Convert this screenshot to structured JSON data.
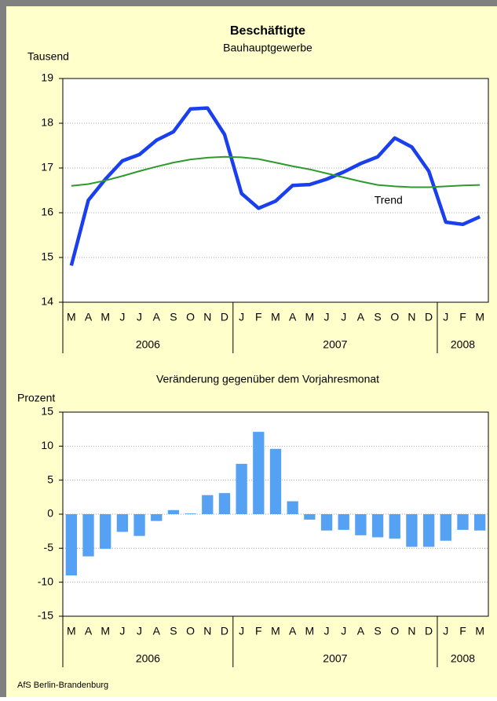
{
  "chart_data": [
    {
      "type": "line",
      "title": "Beschäftigte",
      "subtitle": "Bauhauptgewerbe",
      "y_label": "Tausend",
      "categories": [
        "M",
        "A",
        "M",
        "J",
        "J",
        "A",
        "S",
        "O",
        "N",
        "D",
        "J",
        "F",
        "M",
        "A",
        "M",
        "J",
        "J",
        "A",
        "S",
        "O",
        "N",
        "D",
        "J",
        "F",
        "M"
      ],
      "years": [
        "2006",
        "2007",
        "2008"
      ],
      "series": [
        {
          "color": "#1a3fef",
          "values": [
            14.82,
            16.28,
            16.75,
            17.16,
            17.3,
            17.62,
            17.81,
            18.32,
            18.34,
            17.75,
            16.43,
            16.1,
            16.26,
            16.61,
            16.63,
            16.75,
            16.91,
            17.1,
            17.25,
            17.67,
            17.47,
            16.93,
            15.79,
            15.74,
            15.91
          ]
        },
        {
          "name": "Trend",
          "color": "#2e9a2e",
          "values": [
            16.6,
            16.64,
            16.72,
            16.82,
            16.93,
            17.03,
            17.12,
            17.19,
            17.23,
            17.25,
            17.24,
            17.2,
            17.12,
            17.04,
            16.97,
            16.88,
            16.79,
            16.7,
            16.62,
            16.59,
            16.57,
            16.57,
            16.59,
            16.61,
            16.62
          ]
        }
      ],
      "ylim": [
        14,
        19
      ],
      "yticks": [
        14,
        15,
        16,
        17,
        18,
        19
      ],
      "grid": true
    },
    {
      "type": "bar",
      "title": "Veränderung gegenüber dem Vorjahresmonat",
      "y_label": "Prozent",
      "categories": [
        "M",
        "A",
        "M",
        "J",
        "J",
        "A",
        "S",
        "O",
        "N",
        "D",
        "J",
        "F",
        "M",
        "A",
        "M",
        "J",
        "J",
        "A",
        "S",
        "O",
        "N",
        "D",
        "J",
        "F",
        "M"
      ],
      "years": [
        "2006",
        "2007",
        "2008"
      ],
      "color": "#55a2f5",
      "values": [
        -9,
        -6.2,
        -5.1,
        -2.6,
        -3.2,
        -1.0,
        0.6,
        0.1,
        2.8,
        3.1,
        7.4,
        12.1,
        9.6,
        1.9,
        -0.8,
        -2.4,
        -2.3,
        -3.1,
        -3.4,
        -3.6,
        -4.8,
        -4.8,
        -3.9,
        -2.3,
        -2.4
      ],
      "ylim": [
        -15,
        15
      ],
      "yticks": [
        -15,
        -10,
        -5,
        0,
        5,
        10,
        15
      ],
      "grid": true
    }
  ],
  "footer": "AfS Berlin-Brandenburg"
}
